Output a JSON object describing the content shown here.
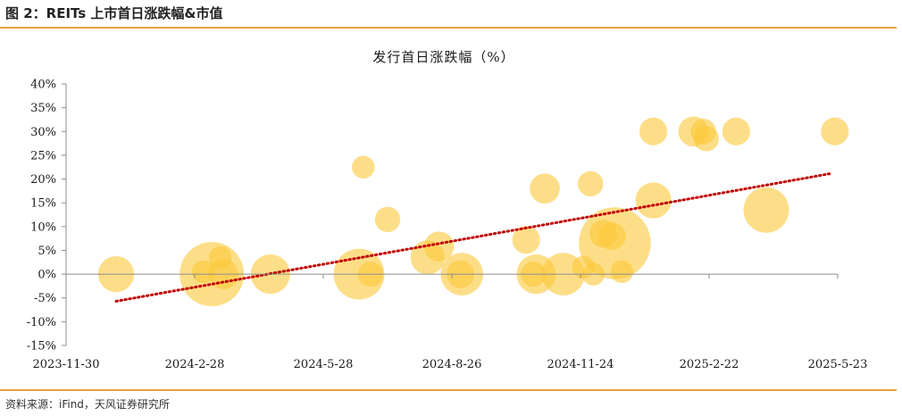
{
  "figure": {
    "title": "图 2：REITs 上市首日涨跌幅&市值",
    "source": "资料来源：iFind，天风证券研究所"
  },
  "colors": {
    "bubble": "#fcc838",
    "trendline": "#c00000",
    "rule": "#e8a23c",
    "axis": "#8c8c8c"
  },
  "chart_data": {
    "type": "scatter",
    "subtype": "bubble",
    "title": "发行首日涨跌幅（%）",
    "xlabel": "",
    "ylabel": "",
    "x_axis": {
      "type": "date",
      "min": "2023-11-30",
      "max": "2025-05-23",
      "ticks": [
        "2023-11-30",
        "2024-2-28",
        "2024-5-28",
        "2024-8-26",
        "2024-11-24",
        "2025-2-22",
        "2025-5-23"
      ]
    },
    "y_axis": {
      "min": -15,
      "max": 40,
      "ticks": [
        -15,
        -10,
        -5,
        0,
        5,
        10,
        15,
        20,
        25,
        30,
        35,
        40
      ],
      "tick_labels": [
        "-15%",
        "-10%",
        "-5%",
        "0%",
        "5%",
        "10%",
        "15%",
        "20%",
        "25%",
        "30%",
        "35%",
        "40%"
      ]
    },
    "grid": false,
    "legend": "none",
    "trendline": {
      "type": "linear",
      "style": "dotted",
      "x_start": "2024-01-04",
      "x_end": "2025-05-19",
      "y_start": -5.7,
      "y_end": 21.2
    },
    "points": [
      {
        "date": "2024-01-04",
        "value": 0.0,
        "size": 5
      },
      {
        "date": "2024-03-11",
        "value": 0.0,
        "size": 16
      },
      {
        "date": "2024-03-05",
        "value": 0.5,
        "size": 2
      },
      {
        "date": "2024-03-17",
        "value": 3.5,
        "size": 2
      },
      {
        "date": "2024-03-19",
        "value": 0.0,
        "size": 3.5
      },
      {
        "date": "2024-04-21",
        "value": 0.0,
        "size": 6
      },
      {
        "date": "2024-06-22",
        "value": 0.0,
        "size": 10
      },
      {
        "date": "2024-06-25",
        "value": 22.5,
        "size": 2
      },
      {
        "date": "2024-06-30",
        "value": 0.0,
        "size": 2.5
      },
      {
        "date": "2024-07-12",
        "value": 11.5,
        "size": 2.5
      },
      {
        "date": "2024-08-09",
        "value": 3.5,
        "size": 4.5
      },
      {
        "date": "2024-08-17",
        "value": 5.8,
        "size": 3.5
      },
      {
        "date": "2024-09-02",
        "value": 0.0,
        "size": 7
      },
      {
        "date": "2024-09-01",
        "value": 0.0,
        "size": 3
      },
      {
        "date": "2024-10-17",
        "value": 7.2,
        "size": 3
      },
      {
        "date": "2024-10-24",
        "value": 0.0,
        "size": 6
      },
      {
        "date": "2024-10-22",
        "value": 0.0,
        "size": 2.5
      },
      {
        "date": "2024-10-30",
        "value": 18.0,
        "size": 3.5
      },
      {
        "date": "2024-11-12",
        "value": 0.0,
        "size": 7
      },
      {
        "date": "2024-11-26",
        "value": 1.5,
        "size": 2
      },
      {
        "date": "2024-12-01",
        "value": 19.0,
        "size": 2.5
      },
      {
        "date": "2024-12-03",
        "value": 0.0,
        "size": 2
      },
      {
        "date": "2024-12-10",
        "value": 8.5,
        "size": 3
      },
      {
        "date": "2024-12-16",
        "value": 8.0,
        "size": 3
      },
      {
        "date": "2024-12-18",
        "value": 6.5,
        "size": 20
      },
      {
        "date": "2024-12-23",
        "value": 0.5,
        "size": 2
      },
      {
        "date": "2025-01-14",
        "value": 15.5,
        "size": 5
      },
      {
        "date": "2025-01-14",
        "value": 30.0,
        "size": 3
      },
      {
        "date": "2025-02-11",
        "value": 30.0,
        "size": 3.5
      },
      {
        "date": "2025-02-18",
        "value": 30.0,
        "size": 2.5
      },
      {
        "date": "2025-02-20",
        "value": 28.5,
        "size": 2.5
      },
      {
        "date": "2025-03-13",
        "value": 30.0,
        "size": 3
      },
      {
        "date": "2025-04-03",
        "value": 13.5,
        "size": 8
      },
      {
        "date": "2025-05-21",
        "value": 30.0,
        "size": 3
      }
    ]
  }
}
